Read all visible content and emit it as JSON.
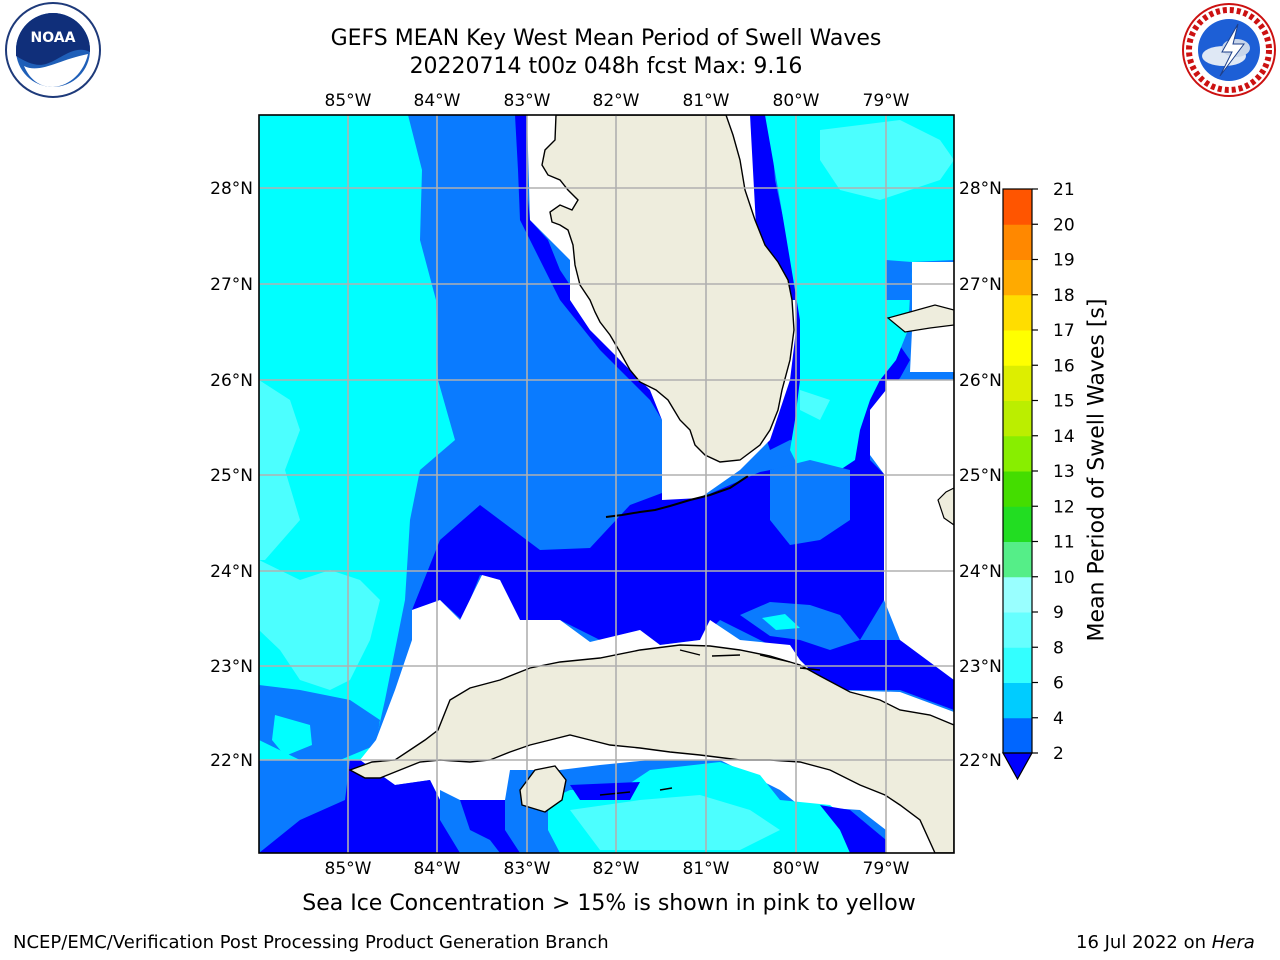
{
  "title": {
    "line1": "GEFS MEAN Key West Mean Period of Swell Waves",
    "line2": "20220714 t00z 048h fcst   Max: 9.16"
  },
  "logos": {
    "left": {
      "name": "noaa-logo",
      "text": "NOAA",
      "ring_text": "NATIONAL OCEANIC AND ATMOSPHERIC ADMINISTRATION · U.S. DEPARTMENT OF COMMERCE"
    },
    "right": {
      "name": "nws-logo",
      "ring_text": "NATIONAL WEATHER SERVICE"
    }
  },
  "map": {
    "longitude_labels": [
      "85°W",
      "84°W",
      "83°W",
      "82°W",
      "81°W",
      "80°W",
      "79°W"
    ],
    "latitude_labels": [
      "28°N",
      "27°N",
      "26°N",
      "25°N",
      "24°N",
      "23°N",
      "22°N"
    ],
    "gridlines": true
  },
  "colorbar": {
    "label": "Mean Period of Swell Waves [s]",
    "ticks": [
      "2",
      "4",
      "6",
      "8",
      "9",
      "10",
      "11",
      "12",
      "13",
      "14",
      "15",
      "16",
      "17",
      "18",
      "19",
      "20",
      "21"
    ],
    "colors": [
      "#0066ff",
      "#00ccff",
      "#33ffff",
      "#66ffff",
      "#99ffff",
      "#55ee88",
      "#22dd22",
      "#44dd00",
      "#88ee00",
      "#bbee00",
      "#ddee00",
      "#ffff00",
      "#ffdd00",
      "#ffaa00",
      "#ff8800",
      "#ff5500",
      "#ff2200",
      "#ff0000"
    ],
    "extend_min_color": "#0000ff"
  },
  "field_colors": {
    "land": "#eeeddd",
    "water_2_4": "#0000ff",
    "water_4_6": "#0a7bff",
    "water_6_8": "#00ffff",
    "water_8_9": "#4cffff",
    "nodata": "#ffffff"
  },
  "ice_note": "Sea Ice Concentration > 15% is shown in pink to yellow",
  "footer": {
    "left": "NCEP/EMC/Verification Post Processing Product Generation Branch",
    "right_prefix": "16 Jul 2022 on ",
    "right_host": "Hera"
  }
}
